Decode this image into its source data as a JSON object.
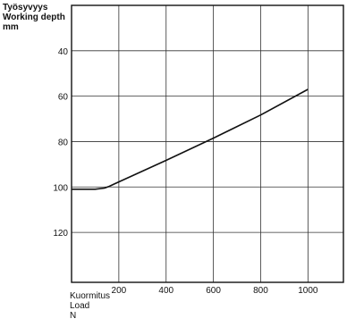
{
  "chart_data": {
    "type": "line",
    "ylabel": [
      "Työsyvyys",
      "Working depth",
      "mm"
    ],
    "xlabel": [
      "Kuormitus",
      "Load",
      "N"
    ],
    "x_ticks": [
      200,
      400,
      600,
      800,
      1000
    ],
    "y_ticks": [
      40,
      60,
      80,
      100,
      120
    ],
    "xlim": [
      0,
      1150
    ],
    "ylim": [
      20,
      142
    ],
    "y_inverted": true,
    "grid": true,
    "series": [
      {
        "x": [
          0,
          60,
          100,
          140,
          160,
          180,
          400,
          600,
          800,
          1000
        ],
        "y": [
          101,
          101,
          101,
          100.5,
          99.7,
          98.7,
          88.3,
          78.5,
          68.3,
          57
        ]
      }
    ]
  }
}
